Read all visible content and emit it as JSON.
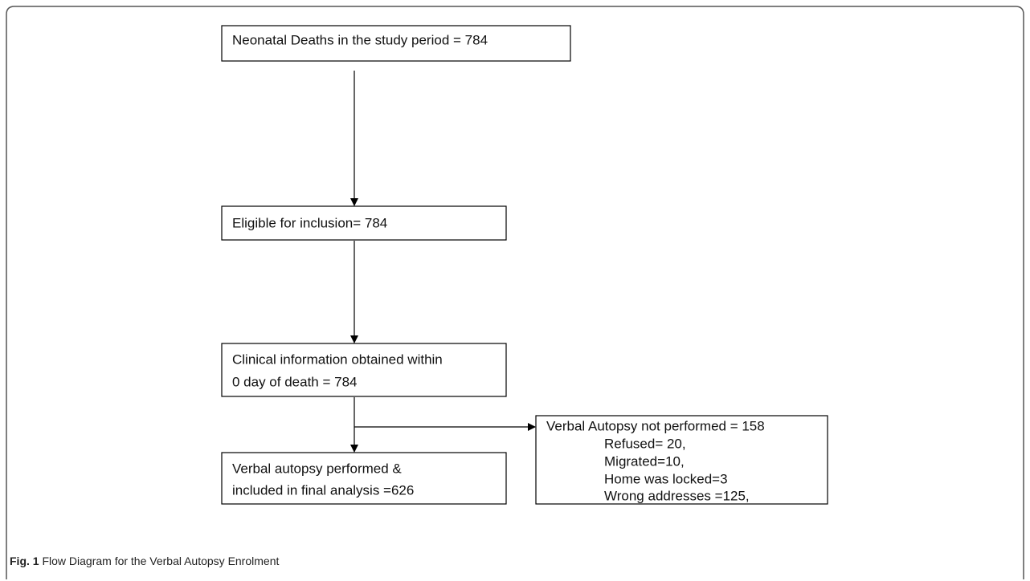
{
  "nodes": [
    {
      "lines": [
        "Neonatal Deaths in the study period = 784"
      ]
    },
    {
      "lines": [
        "Eligible for inclusion= 784"
      ]
    },
    {
      "lines": [
        "Clinical information obtained within",
        "0 day of death = 784"
      ]
    },
    {
      "lines": [
        "Verbal autopsy performed &",
        "included in final analysis =626"
      ]
    },
    {
      "lines": [
        "Verbal Autopsy not performed = 158",
        "Refused= 20,",
        "Migrated=10,",
        "Home was locked=3",
        "Wrong addresses =125,"
      ]
    }
  ],
  "caption": {
    "label": "Fig. 1",
    "text": "Flow Diagram for the Verbal Autopsy Enrolment"
  }
}
